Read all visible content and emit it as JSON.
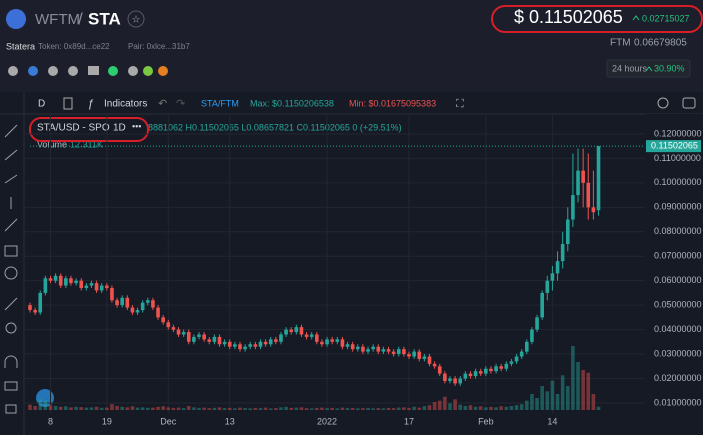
{
  "header": {
    "base": "WFTM",
    "separator": "/",
    "quote": "STA",
    "price": "$ 0.11502065",
    "change": "0.02715027",
    "project": "Statera",
    "token": "Token: 0x89d...ce22",
    "pair": "Pair: 0xlce...31b7",
    "ftm_label": "FTM",
    "ftm_price": "0.06679805",
    "period": "24 hours",
    "period_change": "30.90%"
  },
  "toolbar": {
    "interval": "D",
    "indicators": "Indicators",
    "pair": "STA/FTM",
    "max": "Max: $0.1150206538",
    "min": "Min: $0.01675095383"
  },
  "legend": {
    "symbol": "STA/USD - SPO",
    "interval": "1D",
    "ohlc_text": "8881062 H0.11502065 L0.08657821 C0.11502065 0 (+29.51%)",
    "volume_title": "Volume",
    "volume_text": "12.311K"
  },
  "chart_data": {
    "type": "candlestick",
    "up_color": "#26a69a",
    "down_color": "#ef5350",
    "grid": true,
    "ylim": [
      0.0059,
      0.1257
    ],
    "yticks": [
      {
        "value": 0.01,
        "label": "0.01000000"
      },
      {
        "value": 0.02,
        "label": "0.02000000"
      },
      {
        "value": 0.03,
        "label": "0.03000000"
      },
      {
        "value": 0.04,
        "label": "0.04000000"
      },
      {
        "value": 0.05,
        "label": "0.05000000"
      },
      {
        "value": 0.06,
        "label": "0.06000000"
      },
      {
        "value": 0.07,
        "label": "0.07000000"
      },
      {
        "value": 0.08,
        "label": "0.08000000"
      },
      {
        "value": 0.09,
        "label": "0.09000000"
      },
      {
        "value": 0.1,
        "label": "0.10000000"
      },
      {
        "value": 0.11,
        "label": "0.11000000"
      },
      {
        "value": 0.12,
        "label": "0.12000000"
      }
    ],
    "xlim": [
      0,
      119.1
    ],
    "xticks": [
      {
        "value": 4,
        "label": "8"
      },
      {
        "value": 15,
        "label": "19"
      },
      {
        "value": 27,
        "label": "Dec"
      },
      {
        "value": 39,
        "label": "13"
      },
      {
        "value": 58,
        "label": "2022"
      },
      {
        "value": 74,
        "label": "17"
      },
      {
        "value": 89,
        "label": "Feb"
      },
      {
        "value": 102,
        "label": "14"
      }
    ],
    "volume_lim": [
      0,
      300
    ],
    "open": [
      0.05,
      0.048,
      0.047,
      0.055,
      0.061,
      0.06,
      0.062,
      0.058,
      0.061,
      0.059,
      0.06,
      0.057,
      0.058,
      0.059,
      0.056,
      0.058,
      0.057,
      0.052,
      0.05,
      0.053,
      0.049,
      0.047,
      0.048,
      0.051,
      0.052,
      0.049,
      0.045,
      0.043,
      0.041,
      0.04,
      0.038,
      0.039,
      0.035,
      0.037,
      0.038,
      0.036,
      0.035,
      0.037,
      0.034,
      0.035,
      0.033,
      0.034,
      0.032,
      0.033,
      0.034,
      0.033,
      0.035,
      0.034,
      0.036,
      0.035,
      0.038,
      0.04,
      0.039,
      0.041,
      0.038,
      0.037,
      0.038,
      0.035,
      0.034,
      0.036,
      0.035,
      0.036,
      0.033,
      0.034,
      0.032,
      0.033,
      0.031,
      0.032,
      0.033,
      0.031,
      0.032,
      0.031,
      0.03,
      0.032,
      0.03,
      0.029,
      0.031,
      0.028,
      0.029,
      0.026,
      0.025,
      0.022,
      0.019,
      0.02,
      0.018,
      0.02,
      0.022,
      0.021,
      0.023,
      0.022,
      0.024,
      0.023,
      0.025,
      0.024,
      0.026,
      0.027,
      0.029,
      0.031,
      0.035,
      0.04,
      0.045,
      0.055,
      0.06,
      0.063,
      0.068,
      0.075,
      0.085,
      0.095,
      0.105,
      0.1,
      0.09,
      0.08881062
    ],
    "high": [
      0.051,
      0.049,
      0.056,
      0.062,
      0.062,
      0.063,
      0.063,
      0.062,
      0.062,
      0.061,
      0.061,
      0.059,
      0.06,
      0.06,
      0.059,
      0.059,
      0.058,
      0.053,
      0.054,
      0.054,
      0.05,
      0.049,
      0.052,
      0.053,
      0.053,
      0.05,
      0.046,
      0.044,
      0.042,
      0.041,
      0.04,
      0.04,
      0.038,
      0.039,
      0.039,
      0.037,
      0.038,
      0.038,
      0.036,
      0.036,
      0.035,
      0.035,
      0.034,
      0.035,
      0.035,
      0.036,
      0.036,
      0.037,
      0.037,
      0.039,
      0.041,
      0.041,
      0.042,
      0.042,
      0.039,
      0.039,
      0.039,
      0.036,
      0.037,
      0.037,
      0.037,
      0.037,
      0.035,
      0.035,
      0.034,
      0.034,
      0.033,
      0.034,
      0.034,
      0.033,
      0.033,
      0.032,
      0.033,
      0.033,
      0.031,
      0.032,
      0.032,
      0.03,
      0.03,
      0.027,
      0.026,
      0.023,
      0.021,
      0.021,
      0.021,
      0.023,
      0.023,
      0.024,
      0.024,
      0.025,
      0.025,
      0.026,
      0.026,
      0.027,
      0.028,
      0.03,
      0.032,
      0.036,
      0.041,
      0.046,
      0.056,
      0.062,
      0.066,
      0.072,
      0.08,
      0.09,
      0.112,
      0.114,
      0.114,
      0.112,
      0.105,
      0.11502065
    ],
    "low": [
      0.047,
      0.046,
      0.046,
      0.054,
      0.059,
      0.059,
      0.057,
      0.057,
      0.058,
      0.058,
      0.056,
      0.056,
      0.057,
      0.055,
      0.055,
      0.056,
      0.051,
      0.049,
      0.049,
      0.048,
      0.046,
      0.046,
      0.047,
      0.05,
      0.048,
      0.044,
      0.042,
      0.04,
      0.039,
      0.037,
      0.037,
      0.034,
      0.034,
      0.036,
      0.035,
      0.034,
      0.034,
      0.033,
      0.033,
      0.032,
      0.032,
      0.031,
      0.031,
      0.032,
      0.032,
      0.032,
      0.033,
      0.033,
      0.034,
      0.034,
      0.037,
      0.038,
      0.038,
      0.037,
      0.036,
      0.036,
      0.034,
      0.033,
      0.033,
      0.034,
      0.034,
      0.032,
      0.032,
      0.031,
      0.031,
      0.03,
      0.03,
      0.031,
      0.03,
      0.03,
      0.03,
      0.029,
      0.029,
      0.029,
      0.028,
      0.028,
      0.027,
      0.027,
      0.025,
      0.024,
      0.021,
      0.018,
      0.018,
      0.017,
      0.017,
      0.019,
      0.02,
      0.02,
      0.021,
      0.021,
      0.022,
      0.022,
      0.023,
      0.023,
      0.025,
      0.026,
      0.028,
      0.03,
      0.034,
      0.039,
      0.044,
      0.052,
      0.056,
      0.06,
      0.065,
      0.072,
      0.082,
      0.092,
      0.09,
      0.085,
      0.085,
      0.08657821
    ],
    "close": [
      0.048,
      0.047,
      0.055,
      0.061,
      0.06,
      0.062,
      0.058,
      0.061,
      0.059,
      0.06,
      0.057,
      0.058,
      0.059,
      0.056,
      0.058,
      0.057,
      0.052,
      0.05,
      0.053,
      0.049,
      0.047,
      0.048,
      0.051,
      0.052,
      0.049,
      0.045,
      0.043,
      0.041,
      0.04,
      0.038,
      0.039,
      0.035,
      0.037,
      0.038,
      0.036,
      0.035,
      0.037,
      0.034,
      0.035,
      0.033,
      0.034,
      0.032,
      0.033,
      0.034,
      0.033,
      0.035,
      0.034,
      0.036,
      0.035,
      0.038,
      0.04,
      0.039,
      0.041,
      0.038,
      0.037,
      0.038,
      0.035,
      0.034,
      0.036,
      0.035,
      0.036,
      0.033,
      0.034,
      0.032,
      0.033,
      0.031,
      0.032,
      0.033,
      0.031,
      0.032,
      0.031,
      0.03,
      0.032,
      0.03,
      0.029,
      0.031,
      0.028,
      0.029,
      0.026,
      0.025,
      0.022,
      0.019,
      0.02,
      0.018,
      0.02,
      0.022,
      0.021,
      0.023,
      0.022,
      0.024,
      0.023,
      0.025,
      0.024,
      0.026,
      0.027,
      0.029,
      0.031,
      0.035,
      0.04,
      0.045,
      0.055,
      0.06,
      0.063,
      0.068,
      0.075,
      0.085,
      0.095,
      0.105,
      0.1,
      0.09,
      0.088,
      0.11502065
    ],
    "volume": [
      20,
      15,
      40,
      35,
      18,
      15,
      12,
      14,
      10,
      12,
      11,
      9,
      10,
      12,
      8,
      9,
      22,
      15,
      12,
      10,
      14,
      9,
      10,
      8,
      9,
      12,
      14,
      10,
      8,
      9,
      7,
      15,
      10,
      8,
      9,
      7,
      8,
      10,
      7,
      8,
      6,
      9,
      7,
      6,
      8,
      7,
      9,
      6,
      7,
      10,
      12,
      8,
      9,
      10,
      7,
      6,
      8,
      9,
      7,
      8,
      6,
      9,
      7,
      8,
      6,
      7,
      8,
      6,
      7,
      6,
      8,
      7,
      9,
      10,
      8,
      12,
      9,
      14,
      18,
      30,
      35,
      50,
      25,
      40,
      20,
      15,
      18,
      12,
      14,
      10,
      12,
      10,
      14,
      12,
      15,
      18,
      22,
      35,
      60,
      45,
      90,
      70,
      110,
      60,
      130,
      90,
      240,
      180,
      150,
      140,
      60,
      12.311
    ]
  }
}
